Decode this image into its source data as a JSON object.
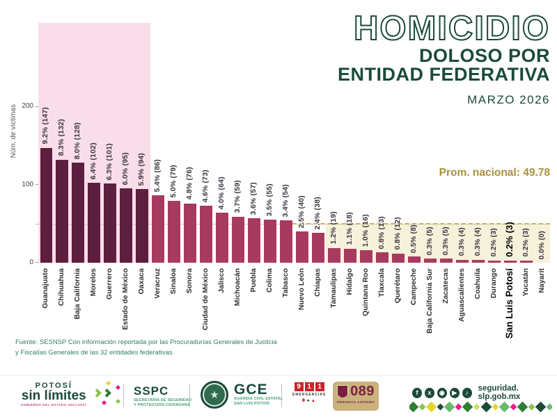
{
  "header": {
    "title": "HOMICIDIO",
    "subtitle_line1": "DOLOSO POR",
    "subtitle_line2": "ENTIDAD FEDERATIVA",
    "period": "MARZO 2026"
  },
  "chart_data": {
    "type": "bar",
    "title": "Homicidio doloso por entidad federativa, marzo 2026",
    "ylabel": "Núm. de víctimas",
    "xlabel": "",
    "ylim": [
      0,
      306
    ],
    "yticks": [
      0,
      100,
      200
    ],
    "ytick_labels": [
      "0",
      "100",
      "200"
    ],
    "grid": false,
    "national_average": 49.78,
    "average_label": "Prom. nacional: 49.78",
    "categories": [
      "Guanajuato",
      "Chihuahua",
      "Baja California",
      "Morelos",
      "Guerrero",
      "Estado de México",
      "Oaxaca",
      "Veracruz",
      "Sinaloa",
      "Sonora",
      "Ciudad de México",
      "Jalisco",
      "Michoacán",
      "Puebla",
      "Colima",
      "Tabasco",
      "Nuevo León",
      "Chiapas",
      "Tamaulipas",
      "Hidalgo",
      "Quintana Roo",
      "Tlaxcala",
      "Querétaro",
      "Campeche",
      "Baja California Sur",
      "Zacatecas",
      "Aguascalientes",
      "Coahuila",
      "Durango",
      "San Luis Potosí",
      "Yucatán",
      "Nayarit"
    ],
    "values": [
      147,
      132,
      128,
      102,
      101,
      95,
      94,
      86,
      79,
      76,
      73,
      64,
      59,
      57,
      55,
      54,
      40,
      38,
      19,
      18,
      16,
      13,
      12,
      8,
      5,
      5,
      4,
      4,
      3,
      3,
      3,
      0
    ],
    "percents": [
      "9.2%",
      "8.3%",
      "8.0%",
      "6.4%",
      "6.3%",
      "6.0%",
      "5.9%",
      "5.4%",
      "5.0%",
      "4.8%",
      "4.6%",
      "4.0%",
      "3.7%",
      "3.6%",
      "3.5%",
      "3.4%",
      "2.5%",
      "2.4%",
      "1.2%",
      "1.1%",
      "1.0%",
      "0.8%",
      "0.8%",
      "0.5%",
      "0.3%",
      "0.3%",
      "0.3%",
      "0.3%",
      "0.2%",
      "0.2%",
      "0.2%",
      "0.0%"
    ],
    "bar_labels": [
      "9.2% (147)",
      "8.3% (132)",
      "8.0% (128)",
      "6.4% (102)",
      "6.3% (101)",
      "6.0% (95)",
      "5.9% (94)",
      "5.4% (86)",
      "5.0% (79)",
      "4.8% (76)",
      "4.6% (73)",
      "4.0% (64)",
      "3.7% (59)",
      "3.6% (57)",
      "3.5% (55)",
      "3.4% (54)",
      "2.5% (40)",
      "2.4% (38)",
      "1.2% (19)",
      "1.1% (18)",
      "1.0% (16)",
      "0.8% (13)",
      "0.8% (12)",
      "0.5% (8)",
      "0.3% (5)",
      "0.3% (5)",
      "0.3% (4)",
      "0.3% (4)",
      "0.2% (3)",
      "0.2% (3)",
      "0.2% (3)",
      "0.0% (0)"
    ],
    "highlighted_category": "San Luis Potosí",
    "highlight_index": 29,
    "dark_bar_count": 7,
    "yellow_band_start_index": 18,
    "colors": {
      "dark_bar": "#5c1f3e",
      "bar": "#a93a5f",
      "pink_band": "#f9dee9",
      "yellow_band": "#f5f1da",
      "avg_line_dashed": "#c5b554",
      "avg_line_faint": "#d9c0c4",
      "avg_label_text": "#a8923c",
      "title_green": "#1b4a3a"
    }
  },
  "source": {
    "line1": "Fuente: SESNSP Con información reportada por las  Procuradurías Generales de Justicia",
    "line2": "y  Fiscalías Generales de las 32 entidades federativas."
  },
  "footer": {
    "potosi": {
      "line1": "POTOSÍ",
      "line2": "sin límites",
      "line3": "GOBIERNO DEL ESTADO 2021•2027"
    },
    "sspc": {
      "abbr": "SSPC",
      "sub_line1": "SECRETARÍA DE SEGURIDAD",
      "sub_line2": "Y PROTECCIÓN CIUDADANA"
    },
    "gce_badge_title": "GUARDIA CIVIL ESTATAL",
    "gce": {
      "abbr": "GCE",
      "sub_line1": "GUARDIA CIVIL ESTATAL",
      "sub_line2": "SAN LUIS POTOSÍ"
    },
    "e911": {
      "digits": [
        "9",
        "1",
        "1"
      ],
      "label": "EMERGENCIAS"
    },
    "e089": {
      "number": "089",
      "label": "DENUNCIA ANÓNIMA"
    },
    "social": {
      "website": "seguridad. slp.gob.mx"
    },
    "pattern_colors": [
      "#2e7d32",
      "#8bc34a",
      "#e3d829",
      "#1b4a3a",
      "#66bb6a",
      "#e91e8c",
      "#2e7d32",
      "#c8e06b",
      "#1b4a3a",
      "#e3d829",
      "#66bb6a",
      "#e91e8c",
      "#2e7d32",
      "#8bc34a",
      "#1b4a3a",
      "#66bb6a"
    ]
  }
}
